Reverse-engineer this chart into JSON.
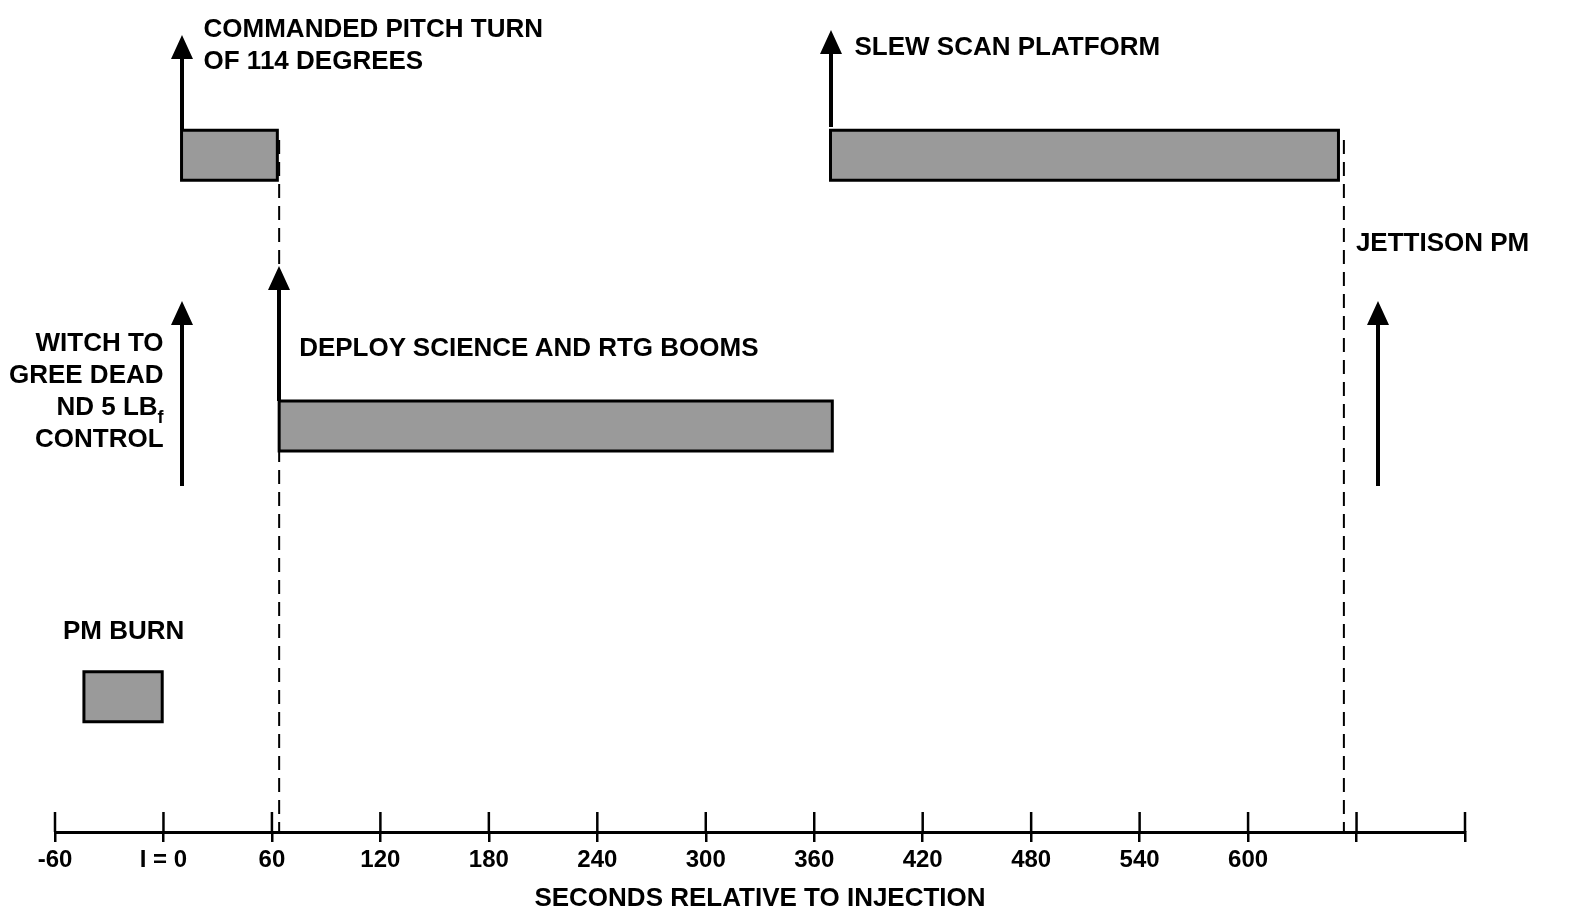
{
  "chart_data": {
    "type": "bar",
    "orientation": "horizontal",
    "xlabel": "SECONDS RELATIVE TO INJECTION",
    "categories": [
      null,
      null,
      null
    ],
    "series": [
      {
        "color": "#9a9a9a",
        "base": [
          10,
          64,
          -44
        ],
        "values": [
          53,
          306,
          44
        ]
      },
      {
        "color": "#9a9a9a",
        "base": [
          369,
          null,
          null
        ],
        "values": [
          281,
          null,
          null
        ]
      }
    ],
    "xlim": [
      -60,
      720
    ],
    "xticks": [
      -60,
      {
        "value": 0,
        "label": "I = 0"
      },
      60,
      120,
      180,
      240,
      300,
      360,
      420,
      480,
      540,
      600,
      {
        "value": 660,
        "label": null
      },
      {
        "value": 720,
        "label": null
      }
    ],
    "ref_lines": [
      {
        "axis": "x",
        "value": 64,
        "line_style": "dashed"
      },
      {
        "axis": "x",
        "value": 653,
        "line_style": "dashed"
      }
    ],
    "annotations": [
      "COMMANDED PITCH TURN\nOF 114 DEGREES",
      "SLEW SCAN PLATFORM",
      "WITCH TO\nGREE DEAD\nND 5 LB$_{f}$\nCONTROL",
      "DEPLOY SCIENCE AND RTG BOOMS",
      "JETTISON PM",
      "PM BURN"
    ],
    "legend": false,
    "tick_labels": "x"
  }
}
